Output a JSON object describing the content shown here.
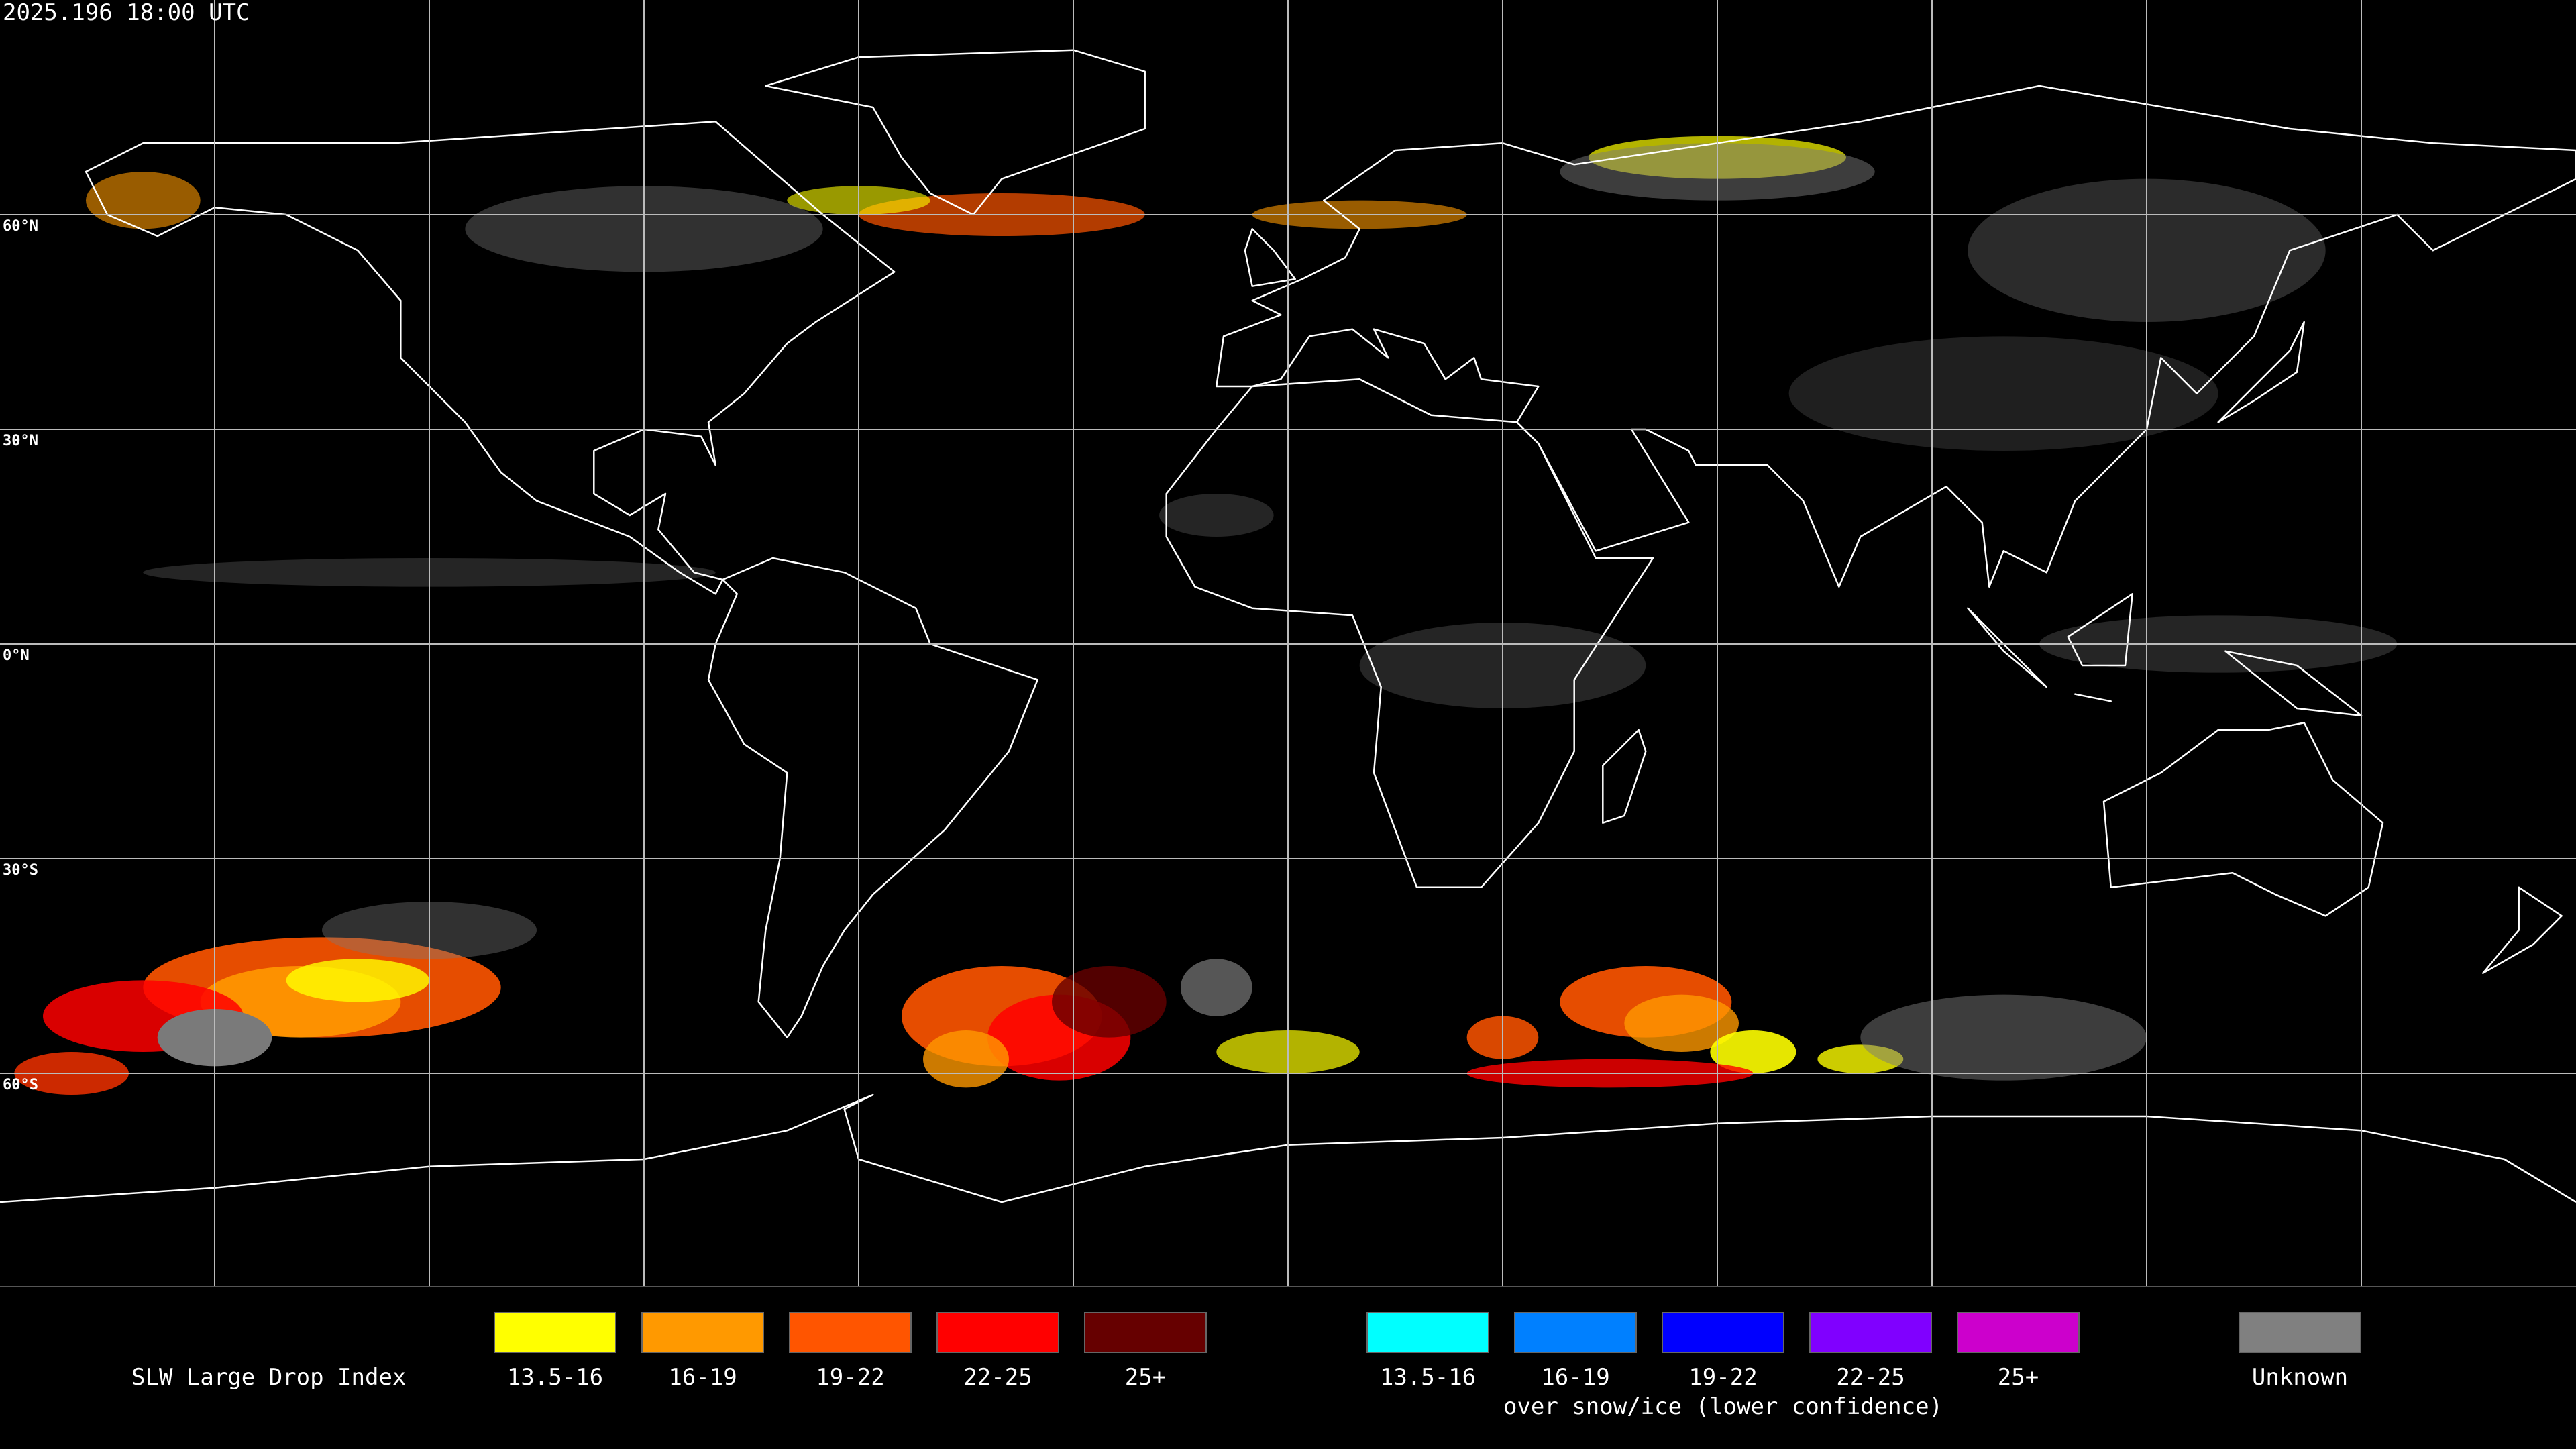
{
  "header": {
    "timestamp": "2025.196 18:00 UTC"
  },
  "map": {
    "latitude_labels": [
      "60°N",
      "30°N",
      "0°N",
      "30°S",
      "60°S"
    ]
  },
  "legend": {
    "title": "SLW Large Drop Index",
    "groups": [
      {
        "items": [
          {
            "label": "13.5-16",
            "color": "#ffff00"
          },
          {
            "label": "16-19",
            "color": "#ff9900"
          },
          {
            "label": "19-22",
            "color": "#ff5500"
          },
          {
            "label": "22-25",
            "color": "#ff0000"
          },
          {
            "label": "25+",
            "color": "#660000"
          }
        ]
      },
      {
        "caption": "over snow/ice (lower confidence)",
        "items": [
          {
            "label": "13.5-16",
            "color": "#00ffff"
          },
          {
            "label": "16-19",
            "color": "#0080ff"
          },
          {
            "label": "19-22",
            "color": "#0000ff"
          },
          {
            "label": "22-25",
            "color": "#8000ff"
          },
          {
            "label": "25+",
            "color": "#cc00cc"
          }
        ]
      },
      {
        "items": [
          {
            "label": "Unknown",
            "color": "#808080"
          }
        ]
      }
    ]
  }
}
